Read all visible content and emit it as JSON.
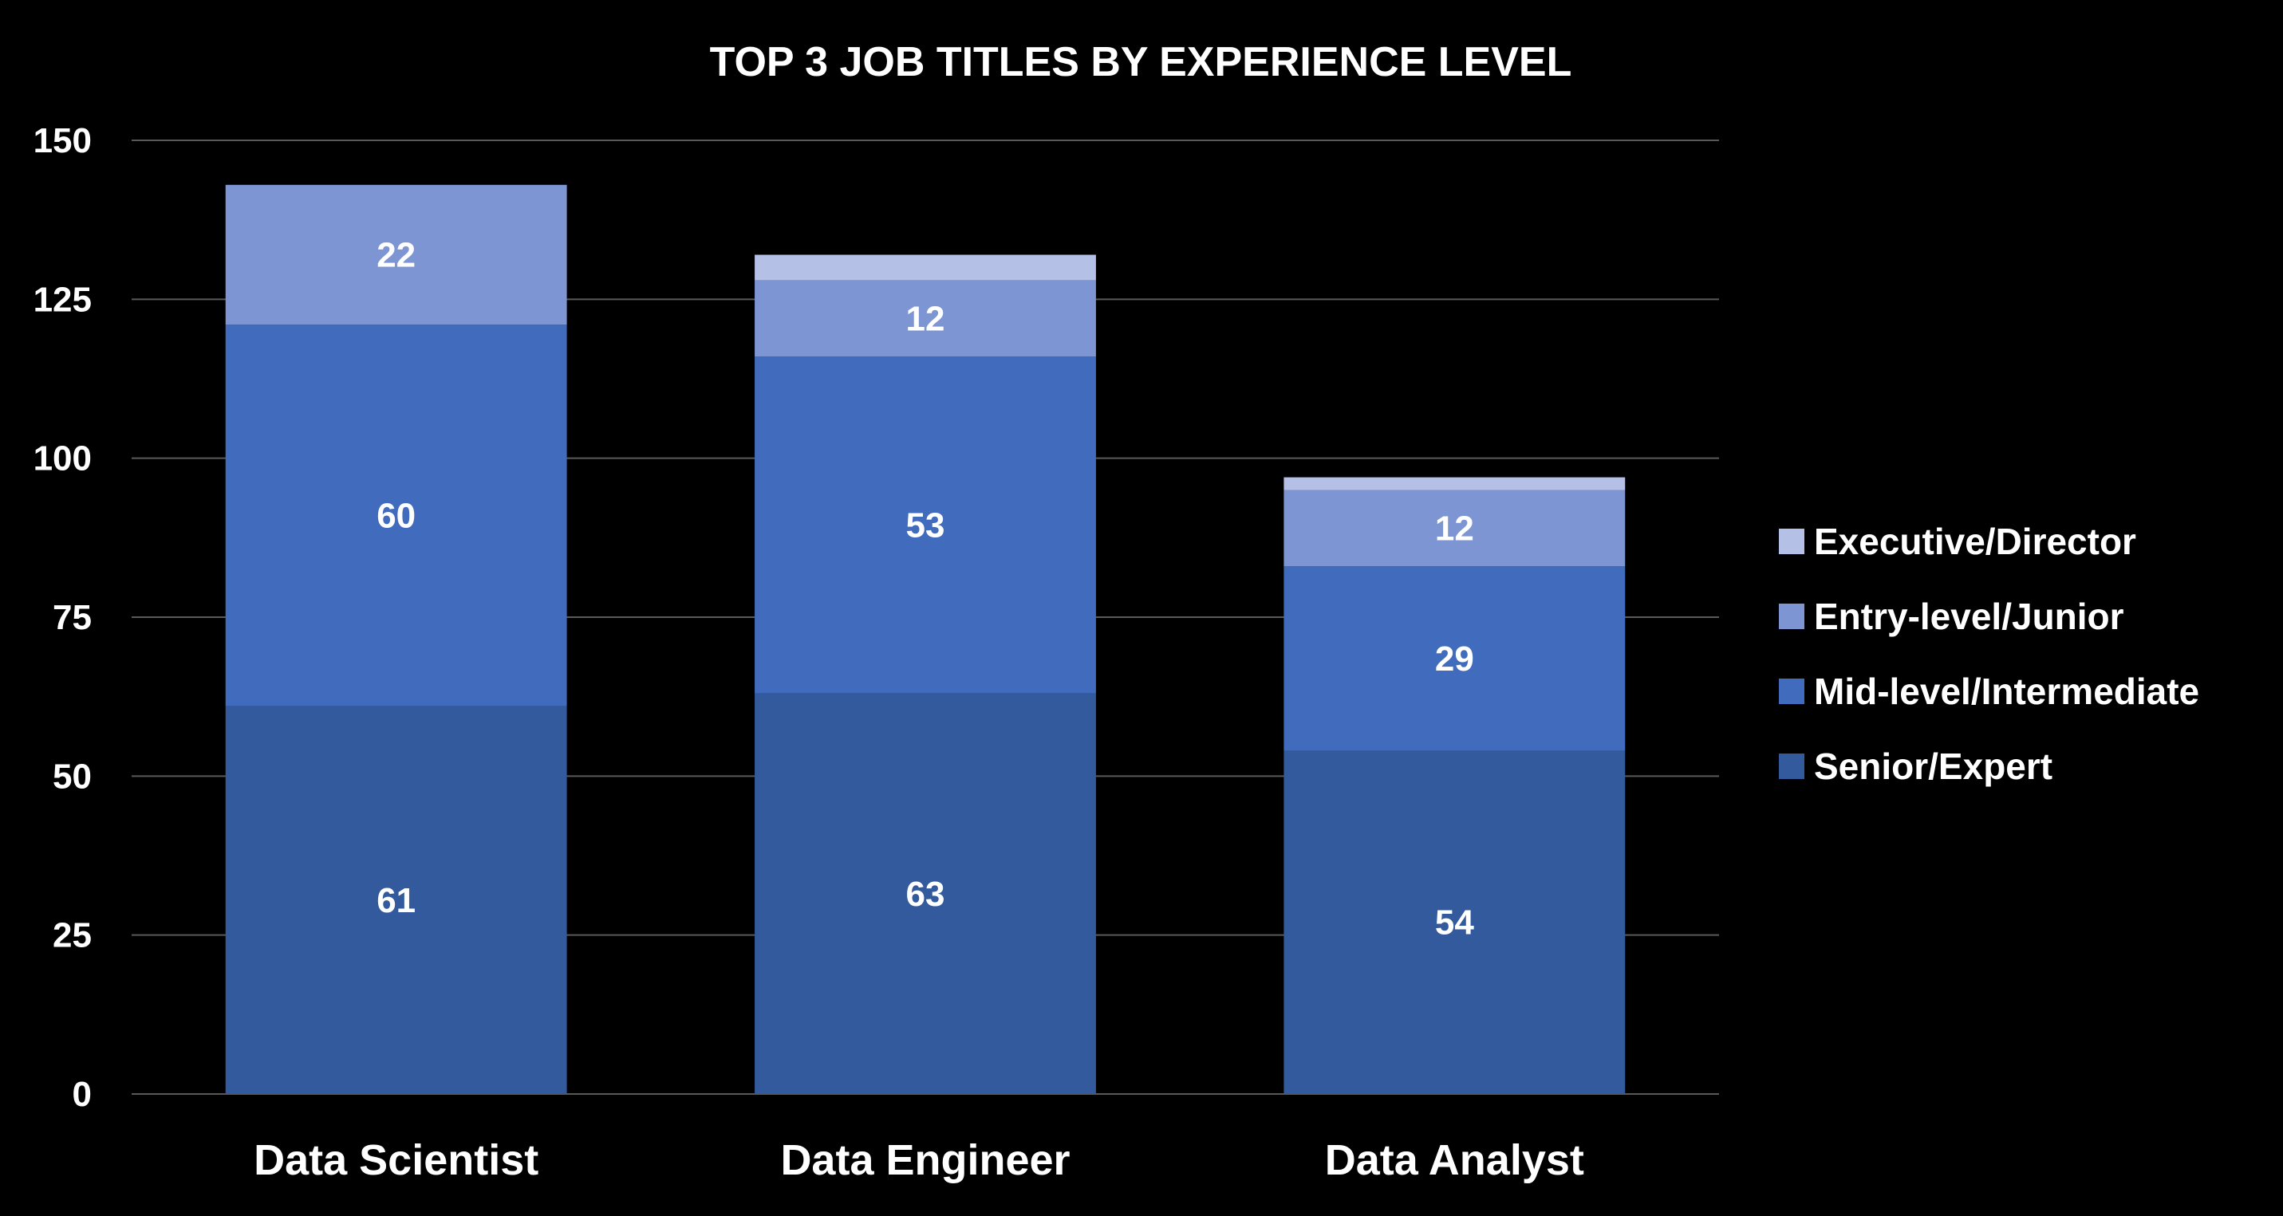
{
  "chart_data": {
    "type": "bar",
    "stacked": true,
    "title": "TOP 3 JOB TITLES BY EXPERIENCE LEVEL",
    "xlabel": "",
    "ylabel": "",
    "categories": [
      "Data Scientist",
      "Data Engineer",
      "Data Analyst"
    ],
    "ylim": [
      0,
      150
    ],
    "yticks": [
      0,
      25,
      50,
      75,
      100,
      125,
      150
    ],
    "grid": true,
    "legend_position": "right",
    "series": [
      {
        "name": "Senior/Expert",
        "color": "#335A9C",
        "values": [
          61,
          63,
          54
        ],
        "labels": [
          "61",
          "63",
          "54"
        ]
      },
      {
        "name": "Mid-level/Intermediate",
        "color": "#416CBD",
        "values": [
          60,
          53,
          29
        ],
        "labels": [
          "60",
          "53",
          "29"
        ]
      },
      {
        "name": "Entry-level/Junior",
        "color": "#7E95D3",
        "values": [
          22,
          12,
          12
        ],
        "labels": [
          "22",
          "12",
          "12"
        ]
      },
      {
        "name": "Executive/Director",
        "color": "#B5C0E6",
        "values": [
          0,
          4,
          2
        ],
        "labels": [
          "",
          "",
          ""
        ]
      }
    ]
  },
  "colors": {
    "background": "#000000",
    "gridline": "#595959",
    "text": "#FFFFFF"
  }
}
